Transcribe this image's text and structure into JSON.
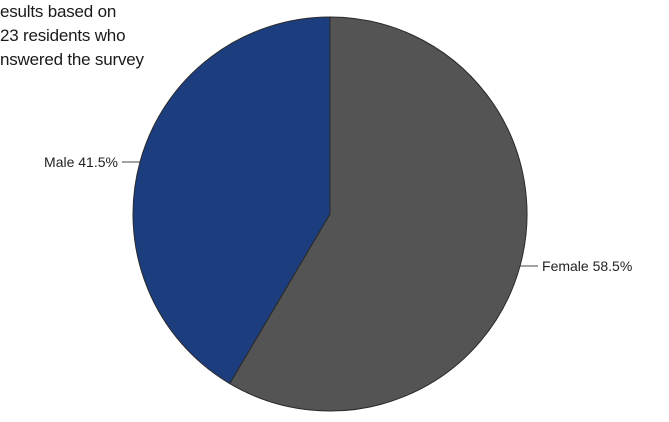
{
  "note": {
    "lines": [
      "esults based on",
      "23 residents who",
      "nswered the survey"
    ]
  },
  "colors": {
    "male": "#1c3d7e",
    "female": "#545454",
    "leader": "#444444",
    "label": "#222222"
  },
  "chart_data": {
    "type": "pie",
    "title": "",
    "slices": [
      {
        "label": "Female",
        "value": 58.5,
        "display": "Female  58.5%"
      },
      {
        "label": "Male",
        "value": 41.5,
        "display": "Male  41.5%"
      }
    ],
    "start": "top",
    "direction": "clockwise",
    "legend": "none"
  }
}
